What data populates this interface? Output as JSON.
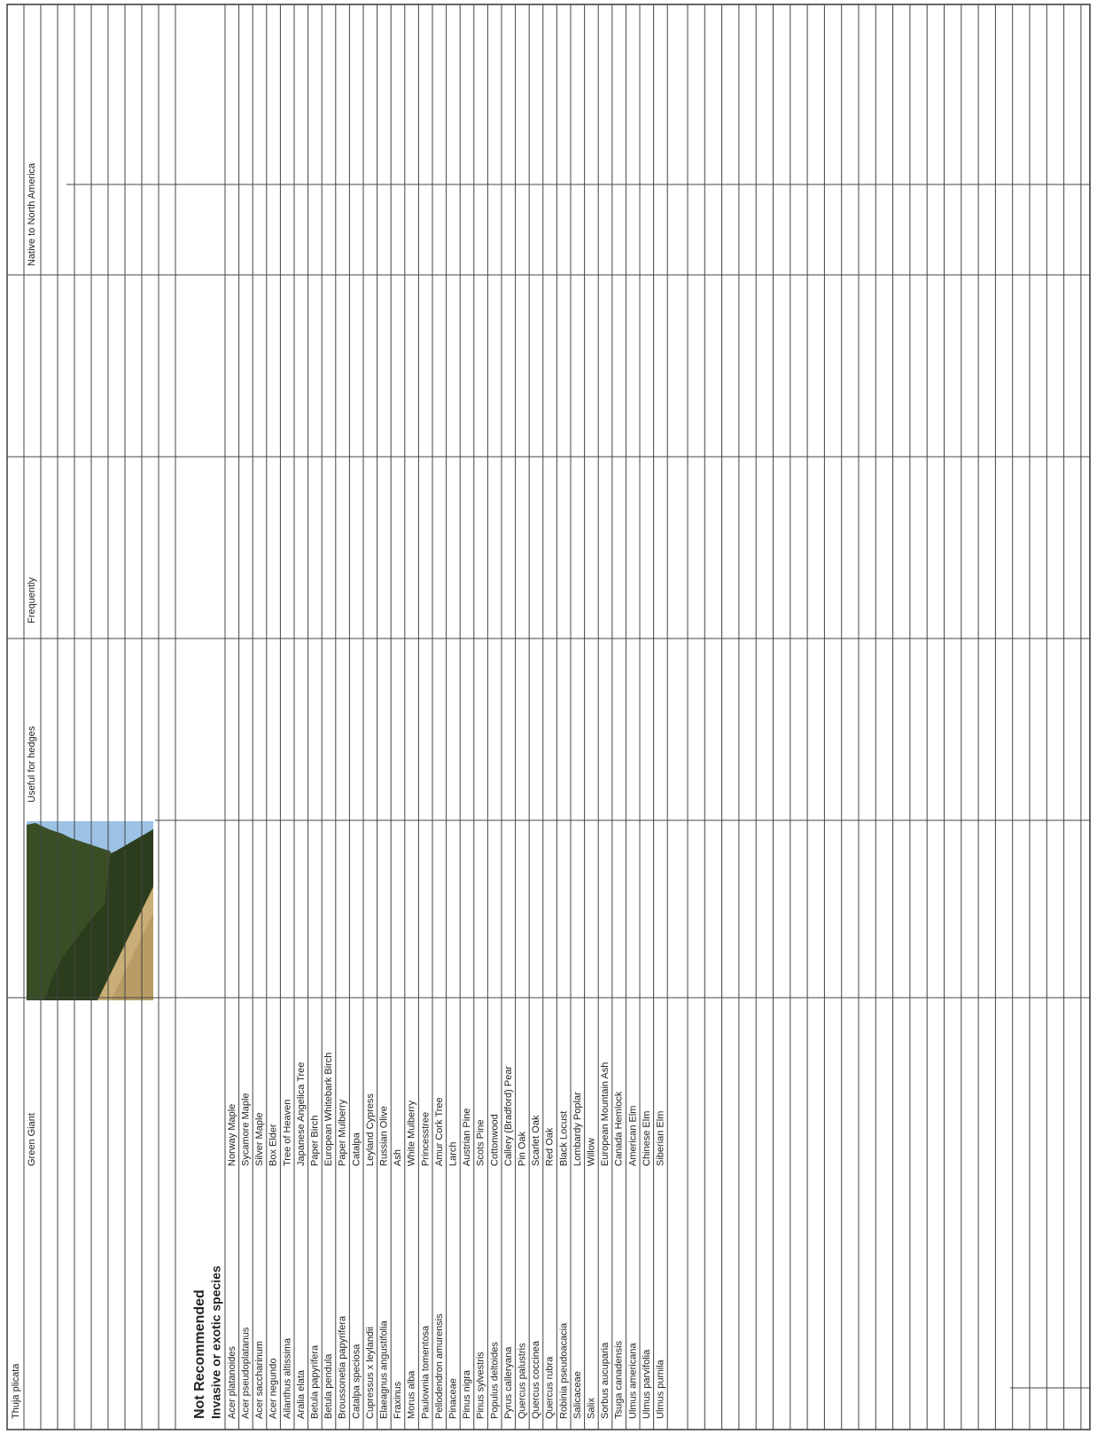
{
  "header": {
    "cells": [
      "Thuja plicata",
      "Green Giant",
      "Useful for hedges",
      "Frequently",
      "Native to North America"
    ]
  },
  "section": {
    "title": "Not Recommended",
    "subtitle": "Invasive or exotic species"
  },
  "rows": [
    [
      "Acer platanoides",
      "Norway Maple"
    ],
    [
      "Acer pseudoplatanus",
      "Sycamore Maple"
    ],
    [
      "Acer saccharinum",
      "Silver Maple"
    ],
    [
      "Acer negundo",
      "Box Elder"
    ],
    [
      "Ailanthus altissima",
      "Tree of Heaven"
    ],
    [
      "Aralia elata",
      "Japanese Angelica Tree"
    ],
    [
      "Betula papyrifera",
      "Paper Birch"
    ],
    [
      "Betula pendula",
      "European Whitebark Birch"
    ],
    [
      "Broussonetia papyrifera",
      "Paper Mulberry"
    ],
    [
      "Catalpa speciosa",
      "Catalpa"
    ],
    [
      "Cupressus x leylandii",
      "Leyland Cypress"
    ],
    [
      "Elaeagnus angustifolia",
      "Russian Olive"
    ],
    [
      "Fraxinus",
      "Ash"
    ],
    [
      "Morus alba",
      "White Mulberry"
    ],
    [
      "Paulownia tomentosa",
      "Princesstree"
    ],
    [
      "Pellodendron amurensis",
      "Amur Cork Tree"
    ],
    [
      "Pinaceae",
      "Larch"
    ],
    [
      "Pinus nigra",
      "Austrian Pine"
    ],
    [
      "Pinus sylvestris",
      "Scots Pine"
    ],
    [
      "Populus deltoides",
      "Cottonwood"
    ],
    [
      "Pyrus calleryana",
      "Callery (Bradford) Pear"
    ],
    [
      "Quercus palustris",
      "Pin Oak"
    ],
    [
      "Quercus coccinea",
      "Scarlet Oak"
    ],
    [
      "Quercus rubra",
      "Red Oak"
    ],
    [
      "Robinia pseudoacacia",
      "Black Locust"
    ],
    [
      "Salicaceae",
      "Lombardy Poplar"
    ],
    [
      "Salix",
      "Willow"
    ],
    [
      "Sorbus aucuparia",
      "European Mountain Ash"
    ],
    [
      "Tsuga canadensis",
      "Canada Hemlock"
    ],
    [
      "Ulmus americana",
      "American Elm"
    ],
    [
      "Ulmus parvifolia",
      "Chinese Elm"
    ],
    [
      "Ulmus pumila",
      "Siberian Elm"
    ]
  ]
}
